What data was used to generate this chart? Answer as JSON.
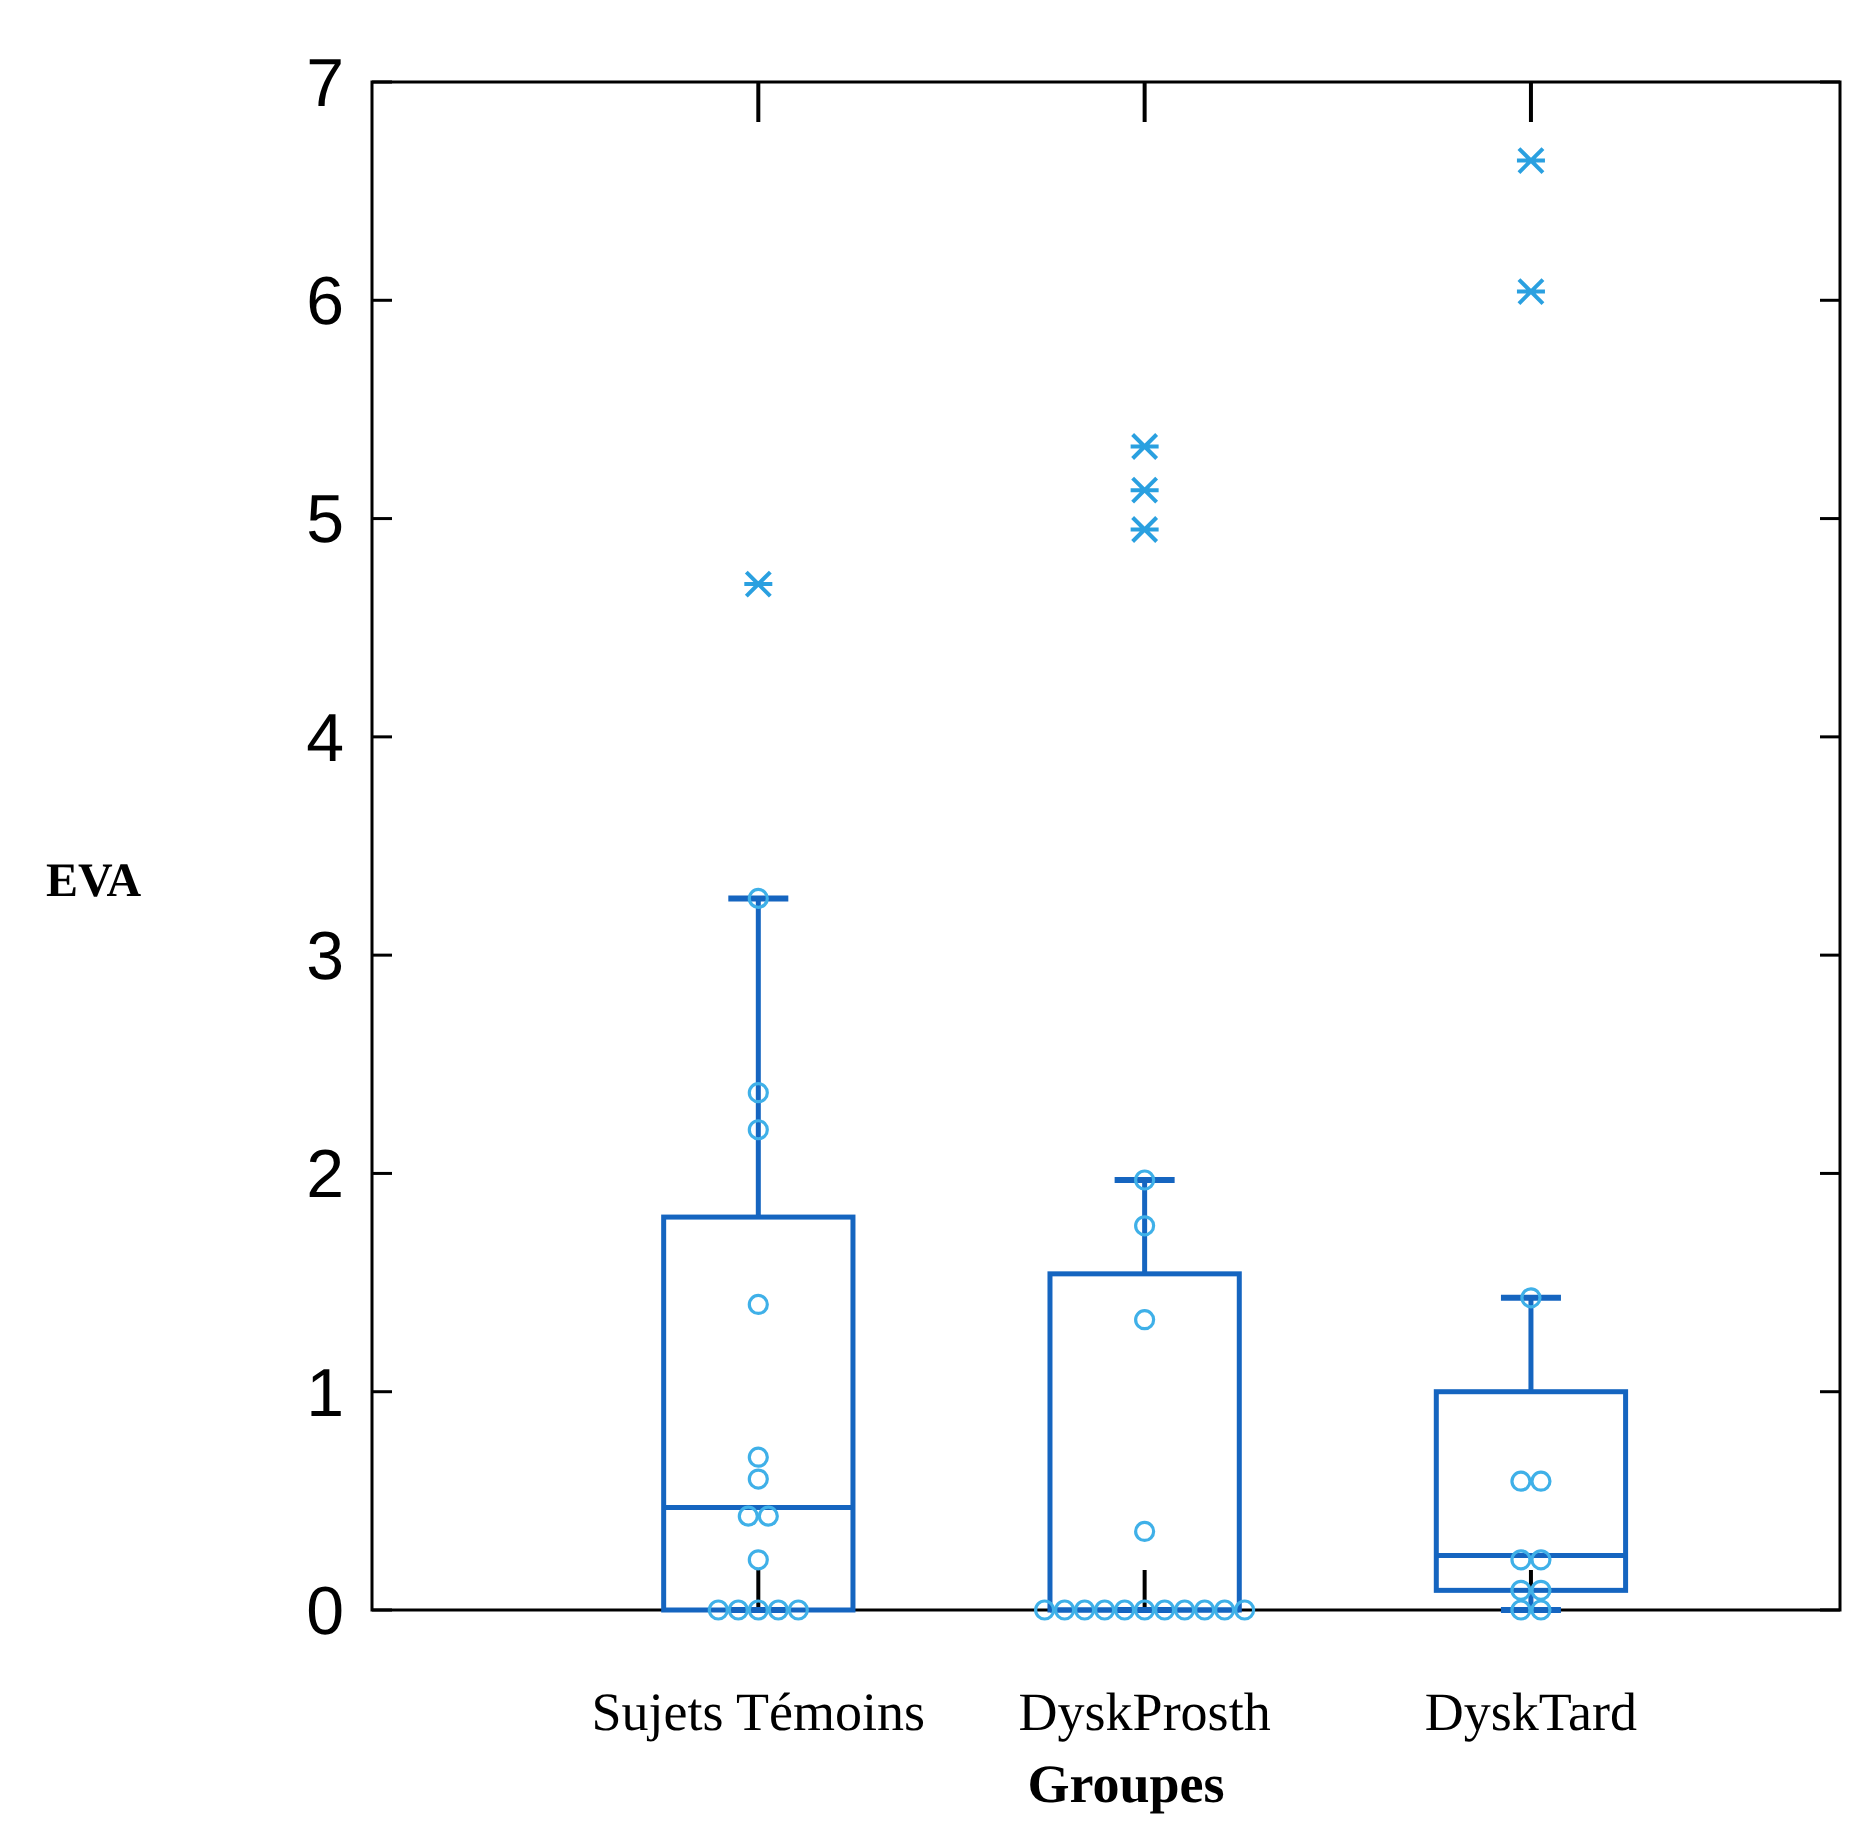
{
  "chart_data": {
    "type": "box",
    "xlabel": "Groupes",
    "ylabel": "EVA",
    "categories": [
      "Sujets Témoins",
      "DyskProsth",
      "DyskTard"
    ],
    "ylim": [
      0,
      7
    ],
    "yticks": [
      0,
      1,
      2,
      3,
      4,
      5,
      6,
      7
    ],
    "grid": false,
    "series": [
      {
        "color": "#1565c0",
        "boxes": [
          {
            "low": 0,
            "q1": 0,
            "median": 0.47,
            "q3": 1.8,
            "high": 3.26,
            "outliers": [
              4.7
            ]
          },
          {
            "low": 0,
            "q1": 0,
            "median": 0,
            "q3": 1.54,
            "high": 1.97,
            "outliers": [
              4.95,
              5.13,
              5.33
            ]
          },
          {
            "low": 0,
            "q1": 0.09,
            "median": 0.25,
            "q3": 1.0,
            "high": 1.43,
            "outliers": [
              6.04,
              6.64
            ]
          }
        ]
      },
      {
        "type": "scatter",
        "color": "#3fb0e8",
        "marker": "circle",
        "x": [
          "Sujets Témoins",
          "Sujets Témoins",
          "Sujets Témoins",
          "Sujets Témoins",
          "Sujets Témoins",
          "Sujets Témoins",
          "Sujets Témoins",
          "Sujets Témoins",
          "Sujets Témoins",
          "Sujets Témoins",
          "Sujets Témoins",
          "Sujets Témoins",
          "Sujets Témoins",
          "Sujets Témoins",
          "DyskProsth",
          "DyskProsth",
          "DyskProsth",
          "DyskProsth",
          "DyskProsth",
          "DyskProsth",
          "DyskProsth",
          "DyskProsth",
          "DyskProsth",
          "DyskProsth",
          "DyskProsth",
          "DyskProsth",
          "DyskProsth",
          "DyskProsth",
          "DyskProsth",
          "DyskTard",
          "DyskTard",
          "DyskTard",
          "DyskTard",
          "DyskTard",
          "DyskTard",
          "DyskTard",
          "DyskTard",
          "DyskTard"
        ],
        "values": [
          0,
          0,
          0,
          0,
          0,
          0.23,
          0.43,
          0.43,
          0.6,
          0.7,
          1.4,
          2.2,
          2.37,
          3.26,
          0,
          0,
          0,
          0,
          0,
          0,
          0,
          0,
          0,
          0,
          0,
          0.36,
          1.33,
          1.76,
          1.97,
          0,
          0,
          0.09,
          0.09,
          0.23,
          0.23,
          0.59,
          0.59,
          1.43
        ]
      }
    ]
  }
}
